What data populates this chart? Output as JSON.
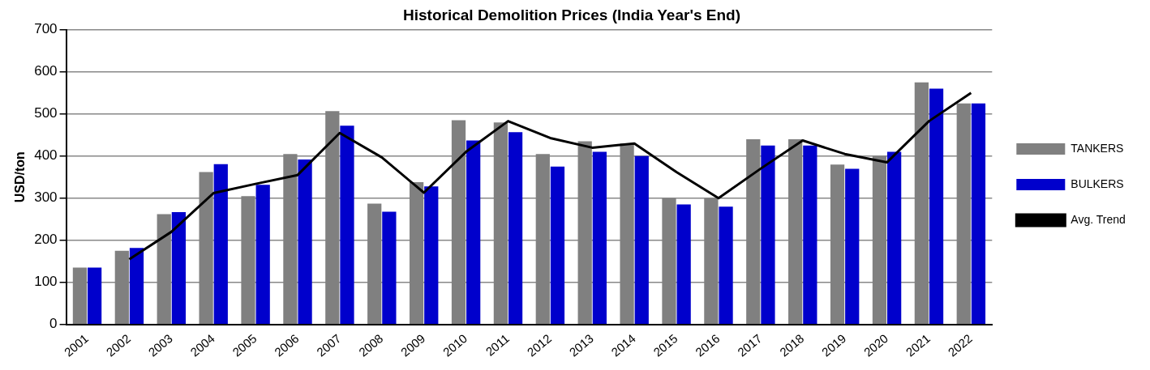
{
  "chart_data": {
    "type": "bar",
    "title": "Historical Demolition Prices (India Year's End)",
    "ylabel": "USD/ton",
    "categories": [
      "2001",
      "2002",
      "2003",
      "2004",
      "2005",
      "2006",
      "2007",
      "2008",
      "2009",
      "2010",
      "2011",
      "2012",
      "2013",
      "2014",
      "2015",
      "2016",
      "2017",
      "2018",
      "2019",
      "2020",
      "2021",
      "2022"
    ],
    "series": [
      {
        "name": "TANKERS",
        "color": "#808080",
        "values": [
          135,
          175,
          262,
          362,
          305,
          405,
          507,
          287,
          338,
          485,
          480,
          405,
          435,
          430,
          300,
          300,
          440,
          440,
          380,
          400,
          575,
          525
        ]
      },
      {
        "name": "BULKERS",
        "color": "#0000cc",
        "values": [
          135,
          182,
          267,
          381,
          332,
          392,
          472,
          268,
          328,
          437,
          457,
          375,
          410,
          400,
          285,
          280,
          425,
          425,
          370,
          410,
          560,
          525
        ]
      },
      {
        "name": "Avg. Trend",
        "type": "line",
        "color": "#000000",
        "values": [
          null,
          155,
          220,
          312,
          334,
          355,
          455,
          397,
          313,
          410,
          483,
          443,
          420,
          430,
          362,
          300,
          370,
          437,
          405,
          385,
          483,
          550
        ]
      }
    ],
    "ylim": [
      0,
      700
    ],
    "yticks": [
      0,
      100,
      200,
      300,
      400,
      500,
      600,
      700
    ],
    "grid": "y",
    "legend": "right",
    "marker": "none"
  }
}
